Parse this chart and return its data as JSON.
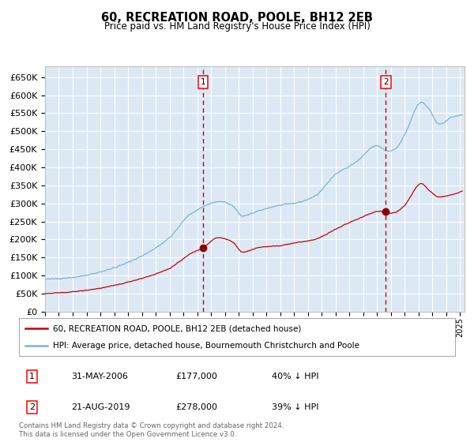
{
  "title": "60, RECREATION ROAD, POOLE, BH12 2EB",
  "subtitle": "Price paid vs. HM Land Registry's House Price Index (HPI)",
  "ylim": [
    0,
    680000
  ],
  "yticks": [
    0,
    50000,
    100000,
    150000,
    200000,
    250000,
    300000,
    350000,
    400000,
    450000,
    500000,
    550000,
    600000,
    650000
  ],
  "bg_color": "#dce9f5",
  "grid_color": "#ffffff",
  "hpi_color": "#7ab3d4",
  "price_color": "#cc0000",
  "marker_color": "#8b0000",
  "vline_color": "#cc0000",
  "sale1_date": "2006-05-31",
  "sale1_price": 177000,
  "sale2_date": "2019-08-21",
  "sale2_price": 278000,
  "legend_line1": "60, RECREATION ROAD, POOLE, BH12 2EB (detached house)",
  "legend_line2": "HPI: Average price, detached house, Bournemouth Christchurch and Poole",
  "table_row1": [
    "1",
    "31-MAY-2006",
    "£177,000",
    "40% ↓ HPI"
  ],
  "table_row2": [
    "2",
    "21-AUG-2019",
    "£278,000",
    "39% ↓ HPI"
  ],
  "footnote": "Contains HM Land Registry data © Crown copyright and database right 2024.\nThis data is licensed under the Open Government Licence v3.0."
}
